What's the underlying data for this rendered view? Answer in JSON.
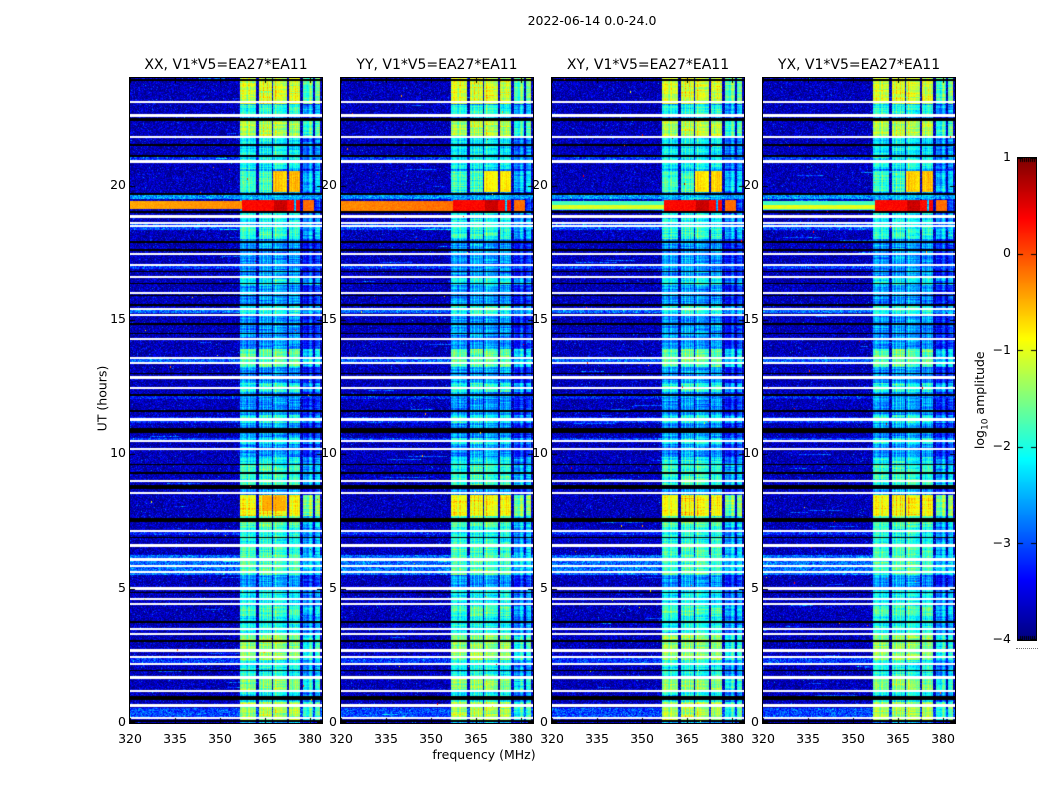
{
  "figure": {
    "title": "2022-06-14 0.0-24.0"
  },
  "axes": {
    "xlabel": "frequency (MHz)",
    "ylabel": "UT (hours)",
    "xticks": [
      320,
      335,
      350,
      365,
      380
    ],
    "yticks": [
      0,
      5,
      10,
      15,
      20
    ],
    "xlim": [
      320,
      384
    ],
    "ylim": [
      0,
      24
    ]
  },
  "colorbar": {
    "label_prefix": "log",
    "label_sub": "10",
    "label_suffix": " amplitude",
    "ticks": [
      1,
      0,
      -1,
      -2,
      -3,
      -4
    ],
    "clim": [
      -4,
      1
    ],
    "colormap": "jet"
  },
  "chart_data": {
    "type": "heatmap",
    "title": "2022-06-14 0.0-24.0",
    "xlabel": "frequency (MHz)",
    "ylabel": "UT (hours)",
    "xlim": [
      320,
      384
    ],
    "ylim": [
      0,
      24
    ],
    "clim": [
      -4,
      1
    ],
    "colormap": "jet",
    "background": -3.75,
    "rfi_base": -2.7,
    "panels": [
      {
        "title": "XX, V1*V5=EA27*EA11",
        "seed": 1,
        "orange_val": -0.55,
        "event8_core": true,
        "event_full": {
          "mode": "band",
          "t0": 19.12,
          "t1": 19.42,
          "val": -0.45
        }
      },
      {
        "title": "YY, V1*V5=EA27*EA11",
        "seed": 2,
        "orange_val": -0.8,
        "event8_core": false,
        "event_full": {
          "mode": "band",
          "t0": 19.05,
          "t1": 19.43,
          "val": -0.3
        }
      },
      {
        "title": "XY, V1*V5=EA27*EA11",
        "seed": 3,
        "orange_val": -0.7,
        "event8_core": false,
        "event_full": {
          "mode": "line",
          "t0": 19.08,
          "t1": 19.42,
          "val": -1.8,
          "lt0": 19.14,
          "lt1": 19.26,
          "lval": -1.05
        }
      },
      {
        "title": "YX, V1*V5=EA27*EA11",
        "seed": 4,
        "orange_val": -0.6,
        "event8_core": false,
        "event_full": {
          "mode": "line",
          "t0": 19.08,
          "t1": 19.42,
          "val": -1.8,
          "lt0": 19.14,
          "lt1": 19.26,
          "lval": -1.0
        }
      }
    ],
    "rfi_bands": [
      {
        "f0": 356.8,
        "f1": 362.1,
        "off": 0.05
      },
      {
        "f0": 362.9,
        "f1": 367.2,
        "off": 0.12
      },
      {
        "f0": 367.8,
        "f1": 372.3,
        "off": 0.2
      },
      {
        "f0": 372.9,
        "f1": 376.8,
        "off": 0.0
      },
      {
        "f0": 377.6,
        "f1": 380.9,
        "off": -0.55
      },
      {
        "f0": 381.7,
        "f1": 383.4,
        "off": -0.35
      }
    ],
    "event": {
      "t0": 19.05,
      "t1": 19.45,
      "f0": 357.5,
      "f1": 381.3,
      "val": 0.35,
      "core_f0": 368,
      "core_f1": 372.3,
      "core_boost": 0.28,
      "right_f0": 377.6,
      "right_off": -0.5,
      "gaps": [
        [
          374.6,
          375.3
        ],
        [
          376.8,
          377.6
        ]
      ]
    },
    "event8": {
      "t0": 7.7,
      "t1": 8.5,
      "val": -1.0,
      "ct0": 7.9,
      "ct1": 8.45,
      "cf0": 364,
      "cf1": 372,
      "cval": -0.48
    },
    "orange_window": {
      "t0": 19.75,
      "t1": 20.55,
      "f0": 367.8,
      "f1": 376.8
    },
    "bright_windows": [
      {
        "t0": 23.05,
        "t1": 24.0,
        "v": -1.15
      },
      {
        "t0": 22.55,
        "t1": 23.0,
        "v": -2.05
      },
      {
        "t0": 21.85,
        "t1": 22.4,
        "v": -1.35
      },
      {
        "t0": 21.3,
        "t1": 21.85,
        "v": -2.25
      },
      {
        "t0": 20.6,
        "t1": 21.3,
        "v": -2.2
      },
      {
        "t0": 19.75,
        "t1": 20.55,
        "v": -1.9
      },
      {
        "t0": 18.45,
        "t1": 19.05,
        "v": -2.2
      },
      {
        "t0": 18.0,
        "t1": 18.45,
        "v": -2.0
      },
      {
        "t0": 16.3,
        "t1": 16.6,
        "v": -2.15
      },
      {
        "t0": 15.2,
        "t1": 15.5,
        "v": -2.1
      },
      {
        "t0": 13.25,
        "t1": 13.9,
        "v": -1.75
      },
      {
        "t0": 12.3,
        "t1": 12.65,
        "v": -2.0
      },
      {
        "t0": 11.15,
        "t1": 11.45,
        "v": -2.1
      },
      {
        "t0": 10.4,
        "t1": 10.6,
        "v": -2.15
      },
      {
        "t0": 9.6,
        "t1": 9.9,
        "v": -2.2
      },
      {
        "t0": 8.8,
        "t1": 9.6,
        "v": -1.95
      },
      {
        "t0": 7.7,
        "t1": 8.5,
        "v": -1.0
      },
      {
        "t0": 7.3,
        "t1": 7.7,
        "v": -1.8
      },
      {
        "t0": 6.7,
        "t1": 7.3,
        "v": -2.1
      },
      {
        "t0": 6.25,
        "t1": 6.7,
        "v": -1.9
      },
      {
        "t0": 5.5,
        "t1": 6.25,
        "v": -1.8
      },
      {
        "t0": 4.35,
        "t1": 5.0,
        "v": -2.2
      },
      {
        "t0": 4.0,
        "t1": 4.35,
        "v": -1.85
      },
      {
        "t0": 3.3,
        "t1": 4.0,
        "v": -2.15
      },
      {
        "t0": 2.35,
        "t1": 3.3,
        "v": -1.5
      },
      {
        "t0": 1.75,
        "t1": 2.35,
        "v": -2.1
      },
      {
        "t0": 1.15,
        "t1": 1.75,
        "v": -1.5
      },
      {
        "t0": 0.8,
        "t1": 1.15,
        "v": -2.2
      },
      {
        "t0": 0.1,
        "t1": 0.8,
        "v": -1.35
      }
    ],
    "cyan_bands": [
      {
        "t0": 5.5,
        "t1": 6.25,
        "b": 0.9
      },
      {
        "t0": 18.35,
        "t1": 18.6,
        "b": 0.7
      },
      {
        "t0": 15.25,
        "t1": 15.45,
        "b": 0.9
      },
      {
        "t0": 13.42,
        "t1": 13.6,
        "b": 0.8
      },
      {
        "t0": 11.15,
        "t1": 11.4,
        "b": 0.5
      },
      {
        "t0": 2.15,
        "t1": 2.5,
        "b": 0.6
      },
      {
        "t0": 0.15,
        "t1": 0.55,
        "b": 0.7
      },
      {
        "t0": 20.95,
        "t1": 21.08,
        "b": 0.6
      },
      {
        "t0": 19.48,
        "t1": 19.64,
        "b": 1.1
      },
      {
        "t0": 10.45,
        "t1": 10.6,
        "b": 0.6
      },
      {
        "t0": 7.0,
        "t1": 7.15,
        "b": 0.5
      },
      {
        "t0": 16.9,
        "t1": 17.0,
        "b": 0.6
      },
      {
        "t0": 12.05,
        "t1": 12.15,
        "b": 0.5
      }
    ],
    "white_gaps": [
      {
        "t": 23.1,
        "w": 1.2
      },
      {
        "t": 22.6,
        "w": 1.2
      },
      {
        "t": 21.8,
        "w": 1.2
      },
      {
        "t": 20.9,
        "w": 1.2
      },
      {
        "t": 18.85,
        "w": 1.2
      },
      {
        "t": 18.62,
        "w": 1.0
      },
      {
        "t": 18.48,
        "w": 1.0
      },
      {
        "t": 17.45,
        "w": 1.0
      },
      {
        "t": 17.05,
        "w": 1.0
      },
      {
        "t": 16.6,
        "w": 1.0
      },
      {
        "t": 16.0,
        "w": 1.2
      },
      {
        "t": 15.42,
        "w": 1.0
      },
      {
        "t": 15.18,
        "w": 1.2
      },
      {
        "t": 14.3,
        "w": 1.0
      },
      {
        "t": 13.58,
        "w": 1.0
      },
      {
        "t": 13.4,
        "w": 1.0
      },
      {
        "t": 12.85,
        "w": 1.2
      },
      {
        "t": 12.45,
        "w": 1.0
      },
      {
        "t": 11.3,
        "w": 1.2
      },
      {
        "t": 10.5,
        "w": 1.0
      },
      {
        "t": 10.2,
        "w": 1.0
      },
      {
        "t": 9.0,
        "w": 1.0
      },
      {
        "t": 8.55,
        "w": 1.2
      },
      {
        "t": 7.15,
        "w": 1.2
      },
      {
        "t": 6.6,
        "w": 1.2
      },
      {
        "t": 6.08,
        "w": 1.2
      },
      {
        "t": 5.85,
        "w": 1.2
      },
      {
        "t": 5.62,
        "w": 1.0
      },
      {
        "t": 5.0,
        "w": 1.2
      },
      {
        "t": 4.6,
        "w": 1.0
      },
      {
        "t": 4.42,
        "w": 1.0
      },
      {
        "t": 3.5,
        "w": 1.2
      },
      {
        "t": 3.32,
        "w": 1.0
      },
      {
        "t": 2.7,
        "w": 1.2
      },
      {
        "t": 2.45,
        "w": 1.0
      },
      {
        "t": 2.2,
        "w": 1.0
      },
      {
        "t": 1.7,
        "w": 1.2
      },
      {
        "t": 1.2,
        "w": 1.0
      },
      {
        "t": 0.65,
        "w": 1.5
      },
      {
        "t": 0.2,
        "w": 1.0
      }
    ],
    "black_lines": [
      {
        "t": 23.92,
        "w": 0.8
      },
      {
        "t": 22.45,
        "w": 1.8
      },
      {
        "t": 21.5,
        "w": 0.8
      },
      {
        "t": 21.1,
        "w": 0.8
      },
      {
        "t": 19.7,
        "w": 1.0
      },
      {
        "t": 19.0,
        "w": 1.0
      },
      {
        "t": 17.9,
        "w": 0.8
      },
      {
        "t": 17.6,
        "w": 0.8
      },
      {
        "t": 16.8,
        "w": 0.8
      },
      {
        "t": 16.35,
        "w": 0.8
      },
      {
        "t": 15.9,
        "w": 0.8
      },
      {
        "t": 15.55,
        "w": 0.8
      },
      {
        "t": 14.85,
        "w": 0.8
      },
      {
        "t": 14.5,
        "w": 0.8
      },
      {
        "t": 13.0,
        "w": 0.8
      },
      {
        "t": 12.2,
        "w": 0.8
      },
      {
        "t": 11.6,
        "w": 0.8
      },
      {
        "t": 10.88,
        "w": 2.2
      },
      {
        "t": 9.62,
        "w": 0.8
      },
      {
        "t": 9.3,
        "w": 0.8
      },
      {
        "t": 8.78,
        "w": 2.0
      },
      {
        "t": 7.55,
        "w": 2.0
      },
      {
        "t": 6.9,
        "w": 0.8
      },
      {
        "t": 4.85,
        "w": 0.8
      },
      {
        "t": 3.75,
        "w": 0.8
      },
      {
        "t": 3.05,
        "w": 0.8
      },
      {
        "t": 1.95,
        "w": 0.8
      },
      {
        "t": 0.92,
        "w": 2.0
      },
      {
        "t": 0.08,
        "w": 1.0
      }
    ]
  }
}
